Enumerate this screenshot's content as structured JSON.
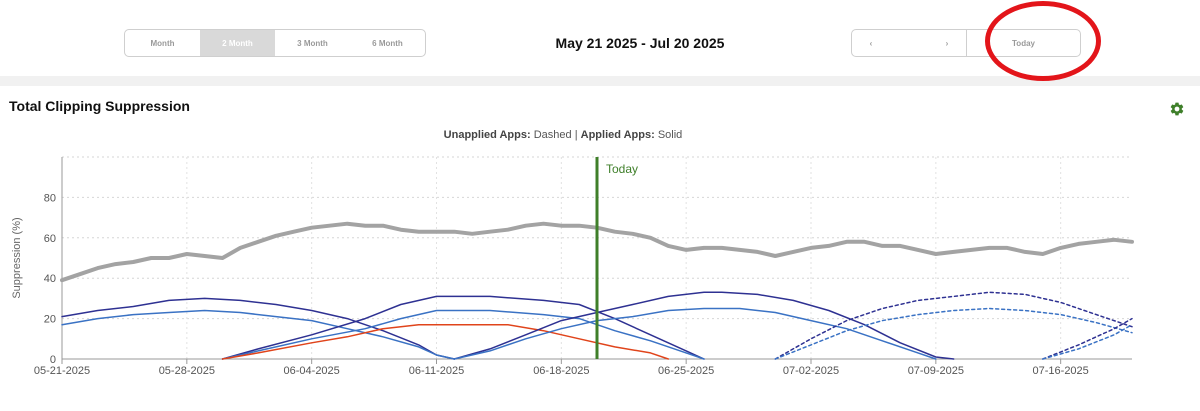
{
  "toolbar": {
    "ranges": [
      {
        "label": "Month",
        "active": false
      },
      {
        "label": "2 Month",
        "active": true
      },
      {
        "label": "3 Month",
        "active": false
      },
      {
        "label": "6 Month",
        "active": false
      }
    ],
    "date_range": "May 21 2025 - Jul 20 2025",
    "prev_label": "‹",
    "next_label": "›",
    "today_label": "Today"
  },
  "annotation": {
    "color": "#e3151a"
  },
  "chart_data": {
    "type": "line",
    "title": "Total Clipping Suppression",
    "subtitle": {
      "unapplied_label": "Unapplied Apps:",
      "unapplied_value": "Dashed",
      "separator": "|",
      "applied_label": "Applied Apps:",
      "applied_value": "Solid"
    },
    "ylabel": "Suppression (%)",
    "ylim": [
      0,
      100
    ],
    "yticks": [
      0,
      20,
      40,
      60,
      80
    ],
    "xlim": [
      "2025-05-21",
      "2025-07-20"
    ],
    "xticks": [
      "05-21-2025",
      "05-28-2025",
      "06-04-2025",
      "06-11-2025",
      "06-18-2025",
      "06-25-2025",
      "07-02-2025",
      "07-09-2025",
      "07-16-2025"
    ],
    "grid": true,
    "today_marker": {
      "date": "2025-06-20",
      "label": "Today",
      "color": "#3f7f2a"
    },
    "series": [
      {
        "color": "#a3a3a3",
        "dash": false,
        "width": 4,
        "points": [
          [
            "2025-05-21",
            39
          ],
          [
            "2025-05-22",
            42
          ],
          [
            "2025-05-23",
            45
          ],
          [
            "2025-05-24",
            47
          ],
          [
            "2025-05-25",
            48
          ],
          [
            "2025-05-26",
            50
          ],
          [
            "2025-05-27",
            50
          ],
          [
            "2025-05-28",
            52
          ],
          [
            "2025-05-29",
            51
          ],
          [
            "2025-05-30",
            50
          ],
          [
            "2025-05-31",
            55
          ],
          [
            "2025-06-01",
            58
          ],
          [
            "2025-06-02",
            61
          ],
          [
            "2025-06-03",
            63
          ],
          [
            "2025-06-04",
            65
          ],
          [
            "2025-06-05",
            66
          ],
          [
            "2025-06-06",
            67
          ],
          [
            "2025-06-07",
            66
          ],
          [
            "2025-06-08",
            66
          ],
          [
            "2025-06-09",
            64
          ],
          [
            "2025-06-10",
            63
          ],
          [
            "2025-06-11",
            63
          ],
          [
            "2025-06-12",
            63
          ],
          [
            "2025-06-13",
            62
          ],
          [
            "2025-06-14",
            63
          ],
          [
            "2025-06-15",
            64
          ],
          [
            "2025-06-16",
            66
          ],
          [
            "2025-06-17",
            67
          ],
          [
            "2025-06-18",
            66
          ],
          [
            "2025-06-19",
            66
          ],
          [
            "2025-06-20",
            65
          ],
          [
            "2025-06-21",
            63
          ],
          [
            "2025-06-22",
            62
          ],
          [
            "2025-06-23",
            60
          ],
          [
            "2025-06-24",
            56
          ],
          [
            "2025-06-25",
            54
          ],
          [
            "2025-06-26",
            55
          ],
          [
            "2025-06-27",
            55
          ],
          [
            "2025-06-28",
            54
          ],
          [
            "2025-06-29",
            53
          ],
          [
            "2025-06-30",
            51
          ],
          [
            "2025-07-01",
            53
          ],
          [
            "2025-07-02",
            55
          ],
          [
            "2025-07-03",
            56
          ],
          [
            "2025-07-04",
            58
          ],
          [
            "2025-07-05",
            58
          ],
          [
            "2025-07-06",
            56
          ],
          [
            "2025-07-07",
            56
          ],
          [
            "2025-07-08",
            54
          ],
          [
            "2025-07-09",
            52
          ],
          [
            "2025-07-10",
            53
          ],
          [
            "2025-07-11",
            54
          ],
          [
            "2025-07-12",
            55
          ],
          [
            "2025-07-13",
            55
          ],
          [
            "2025-07-14",
            53
          ],
          [
            "2025-07-15",
            52
          ],
          [
            "2025-07-16",
            55
          ],
          [
            "2025-07-17",
            57
          ],
          [
            "2025-07-18",
            58
          ],
          [
            "2025-07-19",
            59
          ],
          [
            "2025-07-20",
            58
          ]
        ]
      },
      {
        "color": "#2e3192",
        "dash": false,
        "width": 1.5,
        "points": [
          [
            "2025-05-21",
            21
          ],
          [
            "2025-05-23",
            24
          ],
          [
            "2025-05-25",
            26
          ],
          [
            "2025-05-27",
            29
          ],
          [
            "2025-05-29",
            30
          ],
          [
            "2025-05-31",
            29
          ],
          [
            "2025-06-02",
            27
          ],
          [
            "2025-06-04",
            24
          ],
          [
            "2025-06-06",
            20
          ],
          [
            "2025-06-08",
            14
          ],
          [
            "2025-06-10",
            7
          ],
          [
            "2025-06-11",
            2
          ],
          [
            "2025-06-12",
            0
          ]
        ]
      },
      {
        "color": "#3a72c4",
        "dash": false,
        "width": 1.5,
        "points": [
          [
            "2025-05-21",
            17
          ],
          [
            "2025-05-23",
            20
          ],
          [
            "2025-05-25",
            22
          ],
          [
            "2025-05-27",
            23
          ],
          [
            "2025-05-29",
            24
          ],
          [
            "2025-05-31",
            23
          ],
          [
            "2025-06-02",
            21
          ],
          [
            "2025-06-04",
            19
          ],
          [
            "2025-06-06",
            15
          ],
          [
            "2025-06-08",
            11
          ],
          [
            "2025-06-10",
            6
          ],
          [
            "2025-06-11",
            2
          ],
          [
            "2025-06-12",
            0
          ]
        ]
      },
      {
        "color": "#2e3192",
        "dash": false,
        "width": 1.5,
        "points": [
          [
            "2025-05-30",
            0
          ],
          [
            "2025-06-01",
            5
          ],
          [
            "2025-06-04",
            12
          ],
          [
            "2025-06-07",
            20
          ],
          [
            "2025-06-09",
            27
          ],
          [
            "2025-06-11",
            31
          ],
          [
            "2025-06-14",
            31
          ],
          [
            "2025-06-17",
            29
          ],
          [
            "2025-06-19",
            27
          ],
          [
            "2025-06-21",
            20
          ],
          [
            "2025-06-23",
            12
          ],
          [
            "2025-06-25",
            4
          ],
          [
            "2025-06-26",
            0
          ]
        ]
      },
      {
        "color": "#3a72c4",
        "dash": false,
        "width": 1.5,
        "points": [
          [
            "2025-05-30",
            0
          ],
          [
            "2025-06-01",
            4
          ],
          [
            "2025-06-04",
            10
          ],
          [
            "2025-06-07",
            15
          ],
          [
            "2025-06-09",
            20
          ],
          [
            "2025-06-11",
            24
          ],
          [
            "2025-06-14",
            24
          ],
          [
            "2025-06-17",
            22
          ],
          [
            "2025-06-19",
            20
          ],
          [
            "2025-06-21",
            14
          ],
          [
            "2025-06-23",
            9
          ],
          [
            "2025-06-25",
            3
          ],
          [
            "2025-06-26",
            0
          ]
        ]
      },
      {
        "color": "#e0441b",
        "dash": false,
        "width": 1.5,
        "points": [
          [
            "2025-05-30",
            0
          ],
          [
            "2025-06-01",
            3
          ],
          [
            "2025-06-04",
            8
          ],
          [
            "2025-06-06",
            11
          ],
          [
            "2025-06-08",
            15
          ],
          [
            "2025-06-10",
            17
          ],
          [
            "2025-06-12",
            17
          ],
          [
            "2025-06-15",
            17
          ],
          [
            "2025-06-17",
            14
          ],
          [
            "2025-06-19",
            10
          ],
          [
            "2025-06-21",
            6
          ],
          [
            "2025-06-23",
            3
          ],
          [
            "2025-06-24",
            0
          ]
        ]
      },
      {
        "color": "#2e3192",
        "dash": false,
        "width": 1.5,
        "points": [
          [
            "2025-06-12",
            0
          ],
          [
            "2025-06-14",
            5
          ],
          [
            "2025-06-16",
            12
          ],
          [
            "2025-06-18",
            19
          ],
          [
            "2025-06-20",
            23
          ],
          [
            "2025-06-22",
            27
          ],
          [
            "2025-06-24",
            31
          ],
          [
            "2025-06-26",
            33
          ],
          [
            "2025-06-27",
            33
          ],
          [
            "2025-06-29",
            32
          ],
          [
            "2025-07-01",
            29
          ],
          [
            "2025-07-03",
            24
          ],
          [
            "2025-07-05",
            17
          ],
          [
            "2025-07-07",
            8
          ],
          [
            "2025-07-09",
            1
          ],
          [
            "2025-07-10",
            0
          ]
        ]
      },
      {
        "color": "#3a72c4",
        "dash": false,
        "width": 1.5,
        "points": [
          [
            "2025-06-12",
            0
          ],
          [
            "2025-06-14",
            4
          ],
          [
            "2025-06-16",
            10
          ],
          [
            "2025-06-18",
            15
          ],
          [
            "2025-06-20",
            19
          ],
          [
            "2025-06-22",
            21
          ],
          [
            "2025-06-24",
            24
          ],
          [
            "2025-06-26",
            25
          ],
          [
            "2025-06-28",
            25
          ],
          [
            "2025-06-30",
            23
          ],
          [
            "2025-07-02",
            19
          ],
          [
            "2025-07-04",
            15
          ],
          [
            "2025-07-06",
            9
          ],
          [
            "2025-07-08",
            3
          ],
          [
            "2025-07-09",
            0
          ]
        ]
      },
      {
        "color": "#2e3192",
        "dash": true,
        "width": 1.5,
        "points": [
          [
            "2025-06-30",
            0
          ],
          [
            "2025-07-02",
            10
          ],
          [
            "2025-07-04",
            19
          ],
          [
            "2025-07-06",
            25
          ],
          [
            "2025-07-08",
            29
          ],
          [
            "2025-07-10",
            31
          ],
          [
            "2025-07-12",
            33
          ],
          [
            "2025-07-14",
            32
          ],
          [
            "2025-07-16",
            28
          ],
          [
            "2025-07-18",
            22
          ],
          [
            "2025-07-20",
            16
          ]
        ]
      },
      {
        "color": "#3a72c4",
        "dash": true,
        "width": 1.5,
        "points": [
          [
            "2025-06-30",
            0
          ],
          [
            "2025-07-02",
            7
          ],
          [
            "2025-07-04",
            14
          ],
          [
            "2025-07-06",
            19
          ],
          [
            "2025-07-08",
            22
          ],
          [
            "2025-07-10",
            24
          ],
          [
            "2025-07-12",
            25
          ],
          [
            "2025-07-14",
            24
          ],
          [
            "2025-07-16",
            22
          ],
          [
            "2025-07-18",
            18
          ],
          [
            "2025-07-20",
            13
          ]
        ]
      },
      {
        "color": "#2e3192",
        "dash": true,
        "width": 1.5,
        "points": [
          [
            "2025-07-15",
            0
          ],
          [
            "2025-07-17",
            7
          ],
          [
            "2025-07-19",
            15
          ],
          [
            "2025-07-20",
            20
          ]
        ]
      },
      {
        "color": "#3a72c4",
        "dash": true,
        "width": 1.5,
        "points": [
          [
            "2025-07-15",
            0
          ],
          [
            "2025-07-17",
            5
          ],
          [
            "2025-07-19",
            12
          ],
          [
            "2025-07-20",
            17
          ]
        ]
      }
    ]
  }
}
